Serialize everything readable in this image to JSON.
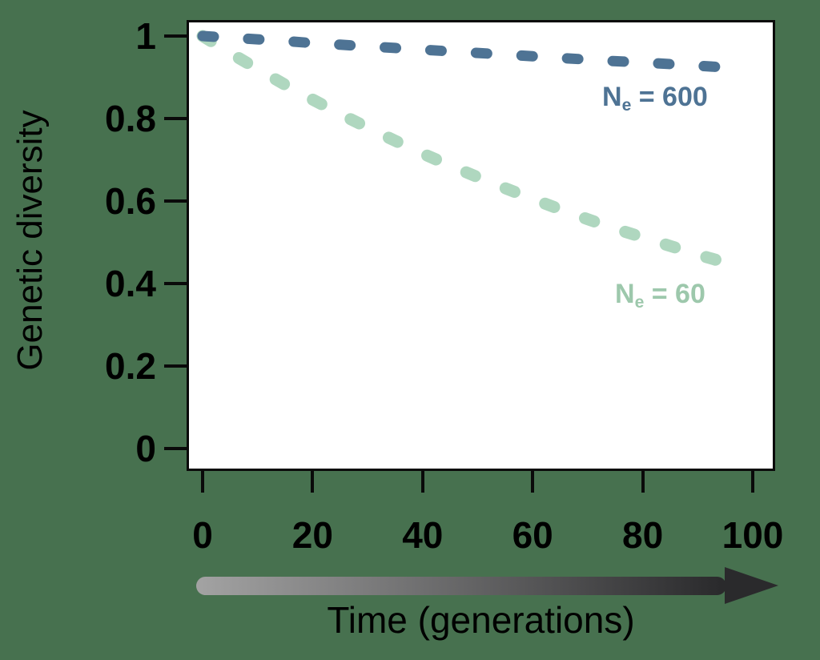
{
  "background_color": "#47714F",
  "panel_color": "#ffffff",
  "axis_color": "#0a0a0a",
  "chart_data": {
    "type": "line",
    "title": "",
    "xlabel": "Time (generations)",
    "ylabel": "Genetic diversity",
    "x_ticks": [
      0,
      20,
      40,
      60,
      80,
      100
    ],
    "y_ticks": [
      1,
      0.8,
      0.6,
      0.4,
      0.2,
      0
    ],
    "xlim": [
      0,
      104
    ],
    "ylim": [
      -0.05,
      1.04
    ],
    "grid": false,
    "legend": "inline-labels",
    "line_style": "dashed",
    "series": [
      {
        "name": "Ne = 600",
        "label_base": "N",
        "label_sub": "e",
        "label_rest": " = 600",
        "color": "#4e7394",
        "x": [
          0,
          5,
          10,
          15,
          20,
          25,
          30,
          35,
          40,
          45,
          50,
          55,
          60,
          65,
          70,
          75,
          80,
          85,
          90,
          95
        ],
        "y": [
          1.0,
          0.996,
          0.992,
          0.988,
          0.983,
          0.979,
          0.975,
          0.971,
          0.967,
          0.963,
          0.959,
          0.955,
          0.951,
          0.947,
          0.943,
          0.939,
          0.936,
          0.932,
          0.928,
          0.924
        ]
      },
      {
        "name": "Ne = 60",
        "label_base": "N",
        "label_sub": "e",
        "label_rest": " = 60",
        "color": "#afd7bf",
        "label_color": "#9dc8ac",
        "x": [
          0,
          5,
          10,
          15,
          20,
          25,
          30,
          35,
          40,
          45,
          50,
          55,
          60,
          65,
          70,
          75,
          80,
          85,
          90,
          95,
          97
        ],
        "y": [
          1.0,
          0.959,
          0.92,
          0.882,
          0.846,
          0.811,
          0.778,
          0.746,
          0.715,
          0.686,
          0.658,
          0.631,
          0.605,
          0.58,
          0.556,
          0.533,
          0.512,
          0.491,
          0.47,
          0.451,
          0.444
        ]
      }
    ],
    "annotations": {
      "x_axis_arrow": true,
      "arrow_gradient": [
        "#a3a3a3",
        "#29292b"
      ]
    }
  }
}
